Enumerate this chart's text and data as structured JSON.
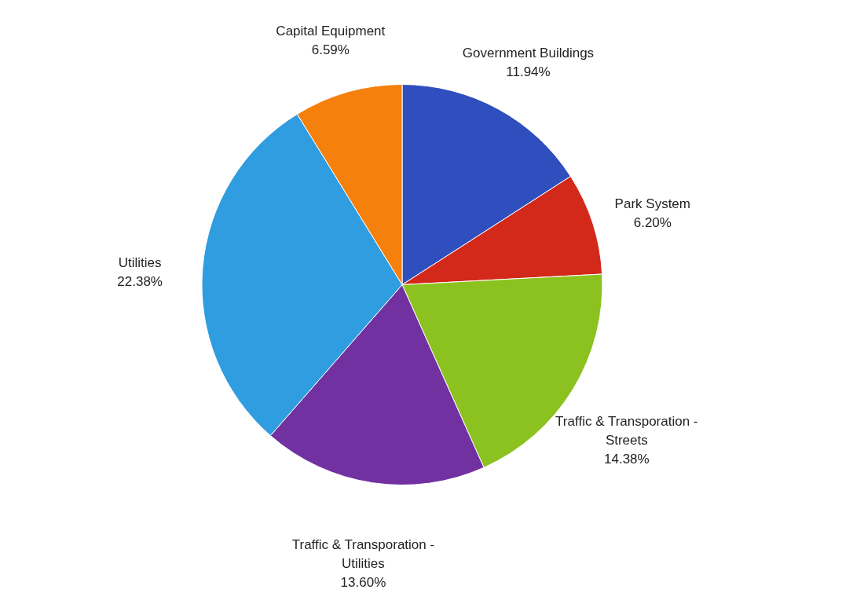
{
  "chart_data": {
    "type": "pie",
    "categories": [
      "Government Buildings",
      "Park System",
      "Traffic & Transporation - Streets",
      "Traffic & Transporation - Utilities",
      "Utilities",
      "Capital Equipment"
    ],
    "values": [
      11.94,
      6.2,
      14.38,
      13.6,
      22.38,
      6.59
    ],
    "value_labels": [
      "11.94%",
      "6.20%",
      "14.38%",
      "13.60%",
      "22.38%",
      "6.59%"
    ],
    "colors": [
      "#2f4fbe",
      "#d3291b",
      "#8cc220",
      "#7131a0",
      "#2f9de0",
      "#f5800c"
    ]
  }
}
